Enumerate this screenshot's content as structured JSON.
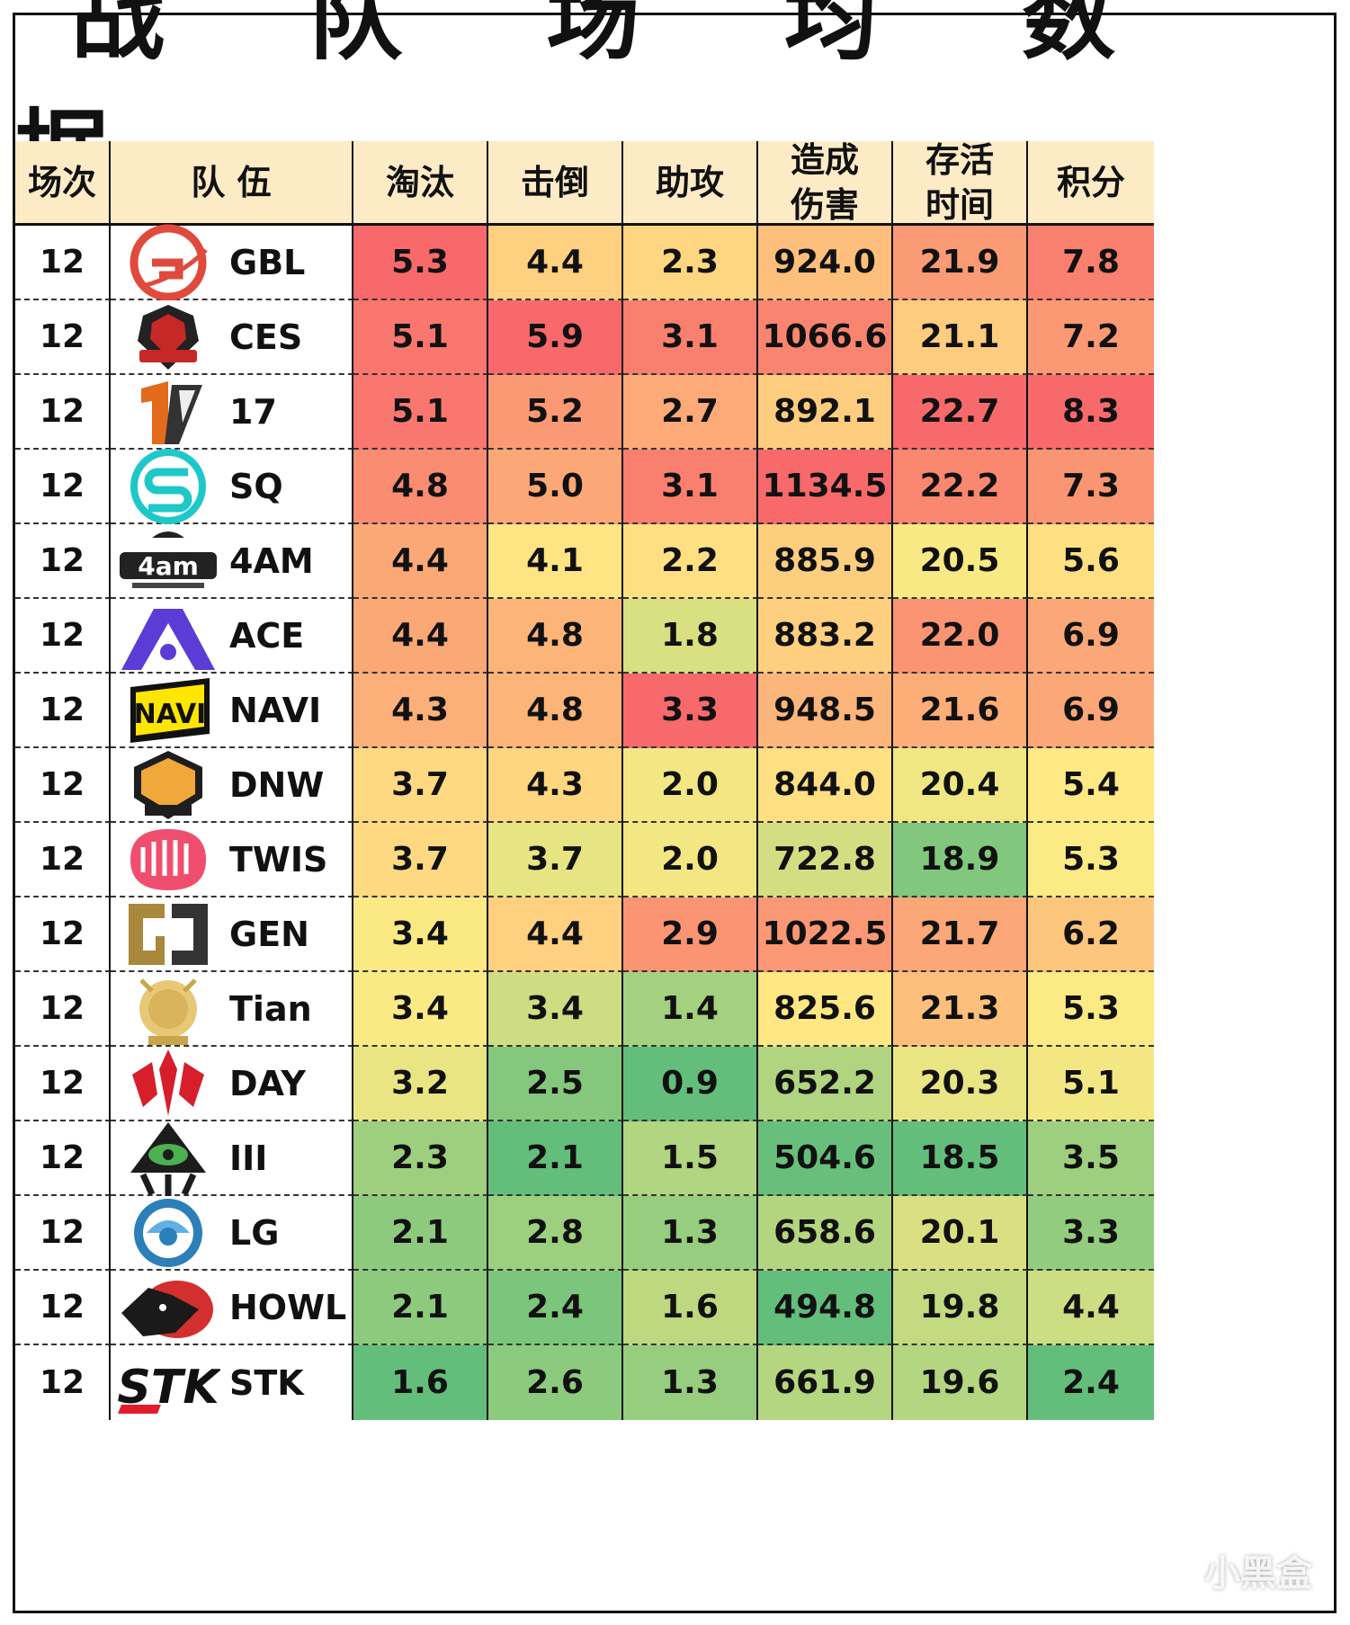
{
  "title": "战 队 场 均 数 据",
  "chart_data": {
    "type": "table",
    "columns": [
      "场次",
      "队 伍",
      "淘汰",
      "击倒",
      "造成\n伤害",
      "助攻",
      "存活\n时间",
      "积分"
    ],
    "header_order": [
      "场次",
      "队 伍",
      "淘汰",
      "击倒",
      "助攻",
      "造成\n伤害",
      "存活\n时间",
      "积分"
    ],
    "rows": [
      {
        "matches": "12",
        "team": "GBL",
        "logo": "gbl-logo-icon",
        "elim": "5.3",
        "knock": "4.4",
        "assist": "2.3",
        "damage": "924.0",
        "survival": "21.9",
        "points": "7.8"
      },
      {
        "matches": "12",
        "team": "CES",
        "logo": "ces-logo-icon",
        "elim": "5.1",
        "knock": "5.9",
        "assist": "3.1",
        "damage": "1066.6",
        "survival": "21.1",
        "points": "7.2"
      },
      {
        "matches": "12",
        "team": "17",
        "logo": "17-logo-icon",
        "elim": "5.1",
        "knock": "5.2",
        "assist": "2.7",
        "damage": "892.1",
        "survival": "22.7",
        "points": "8.3"
      },
      {
        "matches": "12",
        "team": "SQ",
        "logo": "sq-logo-icon",
        "elim": "4.8",
        "knock": "5.0",
        "assist": "3.1",
        "damage": "1134.5",
        "survival": "22.2",
        "points": "7.3"
      },
      {
        "matches": "12",
        "team": "4AM",
        "logo": "4am-logo-icon",
        "elim": "4.4",
        "knock": "4.1",
        "assist": "2.2",
        "damage": "885.9",
        "survival": "20.5",
        "points": "5.6"
      },
      {
        "matches": "12",
        "team": "ACE",
        "logo": "ace-logo-icon",
        "elim": "4.4",
        "knock": "4.8",
        "assist": "1.8",
        "damage": "883.2",
        "survival": "22.0",
        "points": "6.9"
      },
      {
        "matches": "12",
        "team": "NAVI",
        "logo": "navi-logo-icon",
        "elim": "4.3",
        "knock": "4.8",
        "assist": "3.3",
        "damage": "948.5",
        "survival": "21.6",
        "points": "6.9"
      },
      {
        "matches": "12",
        "team": "DNW",
        "logo": "dnw-logo-icon",
        "elim": "3.7",
        "knock": "4.3",
        "assist": "2.0",
        "damage": "844.0",
        "survival": "20.4",
        "points": "5.4"
      },
      {
        "matches": "12",
        "team": "TWIS",
        "logo": "twis-logo-icon",
        "elim": "3.7",
        "knock": "3.7",
        "assist": "2.0",
        "damage": "722.8",
        "survival": "18.9",
        "points": "5.3"
      },
      {
        "matches": "12",
        "team": "GEN",
        "logo": "gen-logo-icon",
        "elim": "3.4",
        "knock": "4.4",
        "assist": "2.9",
        "damage": "1022.5",
        "survival": "21.7",
        "points": "6.2"
      },
      {
        "matches": "12",
        "team": "Tian",
        "logo": "tian-logo-icon",
        "elim": "3.4",
        "knock": "3.4",
        "assist": "1.4",
        "damage": "825.6",
        "survival": "21.3",
        "points": "5.3"
      },
      {
        "matches": "12",
        "team": "DAY",
        "logo": "day-logo-icon",
        "elim": "3.2",
        "knock": "2.5",
        "assist": "0.9",
        "damage": "652.2",
        "survival": "20.3",
        "points": "5.1"
      },
      {
        "matches": "12",
        "team": "III",
        "logo": "iii-logo-icon",
        "elim": "2.3",
        "knock": "2.1",
        "assist": "1.5",
        "damage": "504.6",
        "survival": "18.5",
        "points": "3.5"
      },
      {
        "matches": "12",
        "team": "LG",
        "logo": "lg-logo-icon",
        "elim": "2.1",
        "knock": "2.8",
        "assist": "1.3",
        "damage": "658.6",
        "survival": "20.1",
        "points": "3.3"
      },
      {
        "matches": "12",
        "team": "HOWL",
        "logo": "howl-logo-icon",
        "elim": "2.1",
        "knock": "2.4",
        "assist": "1.6",
        "damage": "494.8",
        "survival": "19.8",
        "points": "4.4"
      },
      {
        "matches": "12",
        "team": "STK",
        "logo": "stk-logo-icon",
        "elim": "1.6",
        "knock": "2.6",
        "assist": "1.3",
        "damage": "661.9",
        "survival": "19.6",
        "points": "2.4"
      }
    ],
    "heatmap_colors": {
      "high": "#f8696b",
      "mid": "#ffeb84",
      "low": "#63be7b"
    },
    "header_bg": "#fdebc6"
  },
  "watermark": "小黑盒"
}
